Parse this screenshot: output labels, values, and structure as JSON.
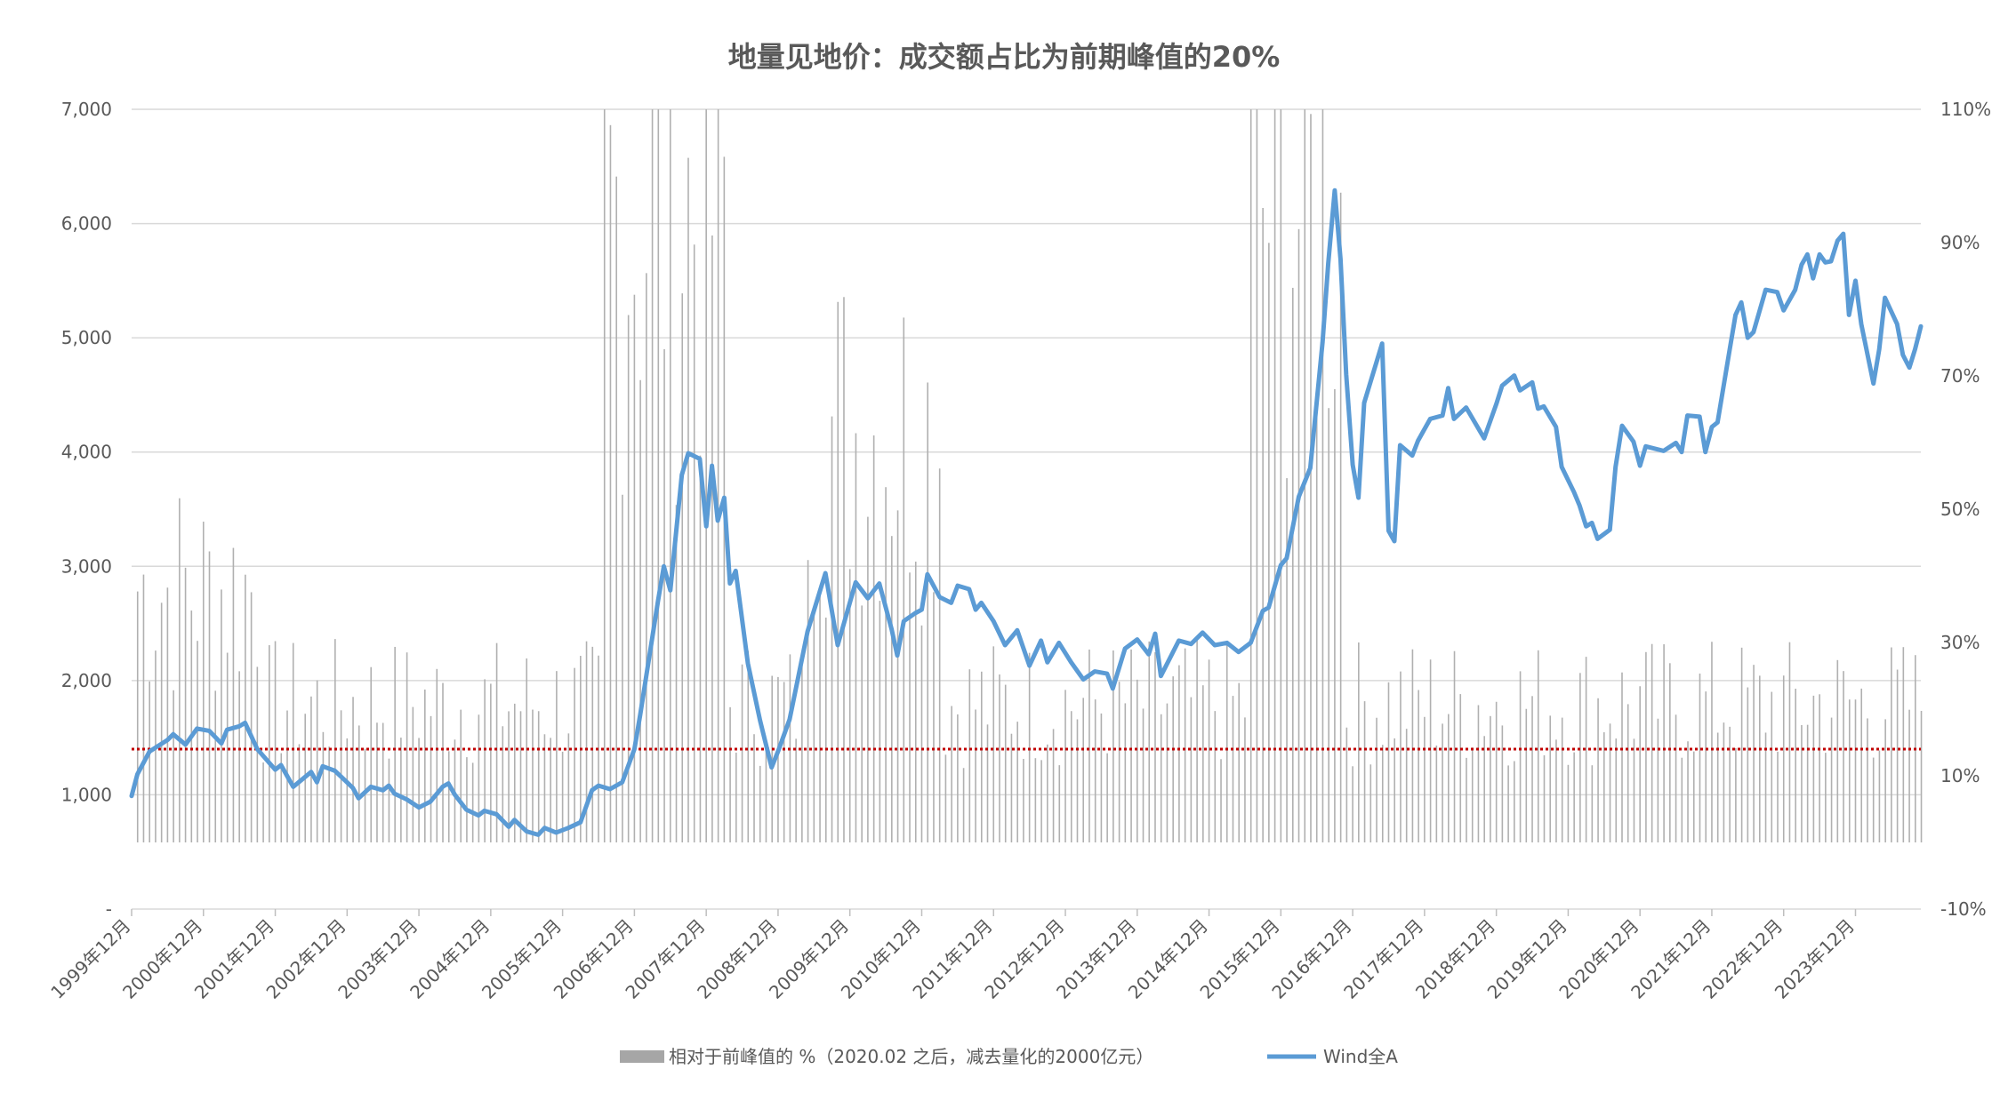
{
  "chart_data": {
    "type": "bar+line",
    "title": "地量见地价：成交额占比为前期峰值的20%",
    "left_axis": {
      "ticks": [
        "7,000",
        "6,000",
        "5,000",
        "4,000",
        "3,000",
        "2,000",
        "1,000",
        "-"
      ],
      "values": [
        7000,
        6000,
        5000,
        4000,
        3000,
        2000,
        1000,
        0
      ],
      "ylim": [
        0,
        7000
      ]
    },
    "right_axis": {
      "ticks": [
        "110%",
        "90%",
        "70%",
        "50%",
        "30%",
        "10%",
        "-10%"
      ],
      "values": [
        110,
        90,
        70,
        50,
        30,
        10,
        -10
      ],
      "ylim": [
        -10,
        110
      ]
    },
    "x_axis": {
      "categories": [
        "1999年12月",
        "2000年12月",
        "2001年12月",
        "2002年12月",
        "2003年12月",
        "2004年12月",
        "2005年12月",
        "2006年12月",
        "2007年12月",
        "2008年12月",
        "2009年12月",
        "2010年12月",
        "2011年12月",
        "2012年12月",
        "2013年12月",
        "2014年12月",
        "2015年12月",
        "2016年12月",
        "2017年12月",
        "2018年12月",
        "2019年12月",
        "2020年12月",
        "2021年12月",
        "2022年12月",
        "2023年12月"
      ],
      "x_range": [
        1999.92,
        2024.83
      ]
    },
    "reference_line": {
      "value": 14,
      "axis": "right",
      "color": "#c00000",
      "style": "dotted"
    },
    "series": [
      {
        "name": "相对于前峰值的 %（2020.02 之后，减去量化的2000亿元）",
        "type": "bar",
        "axis": "right",
        "color": "#a6a6a6",
        "note": "monthly bars, values in % (right axis), clipped at 110%"
      },
      {
        "name": "Wind全A",
        "type": "line",
        "axis": "left",
        "color": "#5b9bd5",
        "points": [
          [
            1999.92,
            990
          ],
          [
            2000.0,
            1180
          ],
          [
            2000.17,
            1380
          ],
          [
            2000.42,
            1480
          ],
          [
            2000.5,
            1530
          ],
          [
            2000.67,
            1440
          ],
          [
            2000.83,
            1580
          ],
          [
            2001.0,
            1560
          ],
          [
            2001.17,
            1450
          ],
          [
            2001.25,
            1570
          ],
          [
            2001.42,
            1600
          ],
          [
            2001.5,
            1630
          ],
          [
            2001.67,
            1400
          ],
          [
            2001.92,
            1220
          ],
          [
            2002.0,
            1260
          ],
          [
            2002.17,
            1070
          ],
          [
            2002.42,
            1200
          ],
          [
            2002.5,
            1110
          ],
          [
            2002.58,
            1250
          ],
          [
            2002.75,
            1210
          ],
          [
            2003.0,
            1060
          ],
          [
            2003.08,
            970
          ],
          [
            2003.25,
            1070
          ],
          [
            2003.42,
            1040
          ],
          [
            2003.5,
            1080
          ],
          [
            2003.58,
            1010
          ],
          [
            2003.75,
            960
          ],
          [
            2003.92,
            890
          ],
          [
            2004.08,
            940
          ],
          [
            2004.25,
            1070
          ],
          [
            2004.33,
            1100
          ],
          [
            2004.42,
            1000
          ],
          [
            2004.58,
            870
          ],
          [
            2004.75,
            820
          ],
          [
            2004.83,
            860
          ],
          [
            2005.0,
            830
          ],
          [
            2005.17,
            720
          ],
          [
            2005.25,
            780
          ],
          [
            2005.42,
            680
          ],
          [
            2005.58,
            650
          ],
          [
            2005.67,
            710
          ],
          [
            2005.83,
            670
          ],
          [
            2006.0,
            710
          ],
          [
            2006.17,
            760
          ],
          [
            2006.33,
            1040
          ],
          [
            2006.42,
            1080
          ],
          [
            2006.58,
            1050
          ],
          [
            2006.75,
            1110
          ],
          [
            2006.92,
            1400
          ],
          [
            2007.0,
            1700
          ],
          [
            2007.25,
            2700
          ],
          [
            2007.33,
            3000
          ],
          [
            2007.42,
            2790
          ],
          [
            2007.58,
            3800
          ],
          [
            2007.67,
            3990
          ],
          [
            2007.83,
            3940
          ],
          [
            2007.92,
            3350
          ],
          [
            2008.0,
            3880
          ],
          [
            2008.08,
            3400
          ],
          [
            2008.17,
            3600
          ],
          [
            2008.25,
            2850
          ],
          [
            2008.33,
            2960
          ],
          [
            2008.5,
            2150
          ],
          [
            2008.67,
            1650
          ],
          [
            2008.83,
            1240
          ],
          [
            2008.92,
            1380
          ],
          [
            2009.08,
            1660
          ],
          [
            2009.33,
            2430
          ],
          [
            2009.58,
            2940
          ],
          [
            2009.75,
            2310
          ],
          [
            2010.0,
            2860
          ],
          [
            2010.17,
            2720
          ],
          [
            2010.33,
            2850
          ],
          [
            2010.5,
            2450
          ],
          [
            2010.58,
            2220
          ],
          [
            2010.67,
            2520
          ],
          [
            2010.83,
            2590
          ],
          [
            2010.92,
            2620
          ],
          [
            2011.0,
            2930
          ],
          [
            2011.17,
            2730
          ],
          [
            2011.33,
            2680
          ],
          [
            2011.42,
            2830
          ],
          [
            2011.58,
            2800
          ],
          [
            2011.67,
            2620
          ],
          [
            2011.75,
            2680
          ],
          [
            2011.92,
            2520
          ],
          [
            2012.08,
            2310
          ],
          [
            2012.25,
            2440
          ],
          [
            2012.42,
            2130
          ],
          [
            2012.58,
            2350
          ],
          [
            2012.67,
            2160
          ],
          [
            2012.83,
            2330
          ],
          [
            2013.0,
            2160
          ],
          [
            2013.17,
            2010
          ],
          [
            2013.33,
            2080
          ],
          [
            2013.5,
            2060
          ],
          [
            2013.58,
            1930
          ],
          [
            2013.75,
            2280
          ],
          [
            2013.92,
            2360
          ],
          [
            2014.08,
            2230
          ],
          [
            2014.17,
            2410
          ],
          [
            2014.25,
            2040
          ],
          [
            2014.5,
            2350
          ],
          [
            2014.67,
            2320
          ],
          [
            2014.83,
            2420
          ],
          [
            2015.0,
            2310
          ],
          [
            2015.17,
            2330
          ],
          [
            2015.33,
            2250
          ],
          [
            2015.5,
            2330
          ],
          [
            2015.67,
            2610
          ],
          [
            2015.75,
            2640
          ],
          [
            2015.92,
            3010
          ],
          [
            2016.0,
            3070
          ],
          [
            2016.17,
            3610
          ],
          [
            2016.33,
            3860
          ],
          [
            2016.5,
            4960
          ],
          [
            2016.58,
            5650
          ],
          [
            2016.67,
            6290
          ],
          [
            2016.75,
            5690
          ],
          [
            2016.83,
            4680
          ],
          [
            2016.92,
            3890
          ],
          [
            2017.0,
            3600
          ],
          [
            2017.08,
            4430
          ],
          [
            2017.33,
            4950
          ],
          [
            2017.42,
            3310
          ],
          [
            2017.5,
            3220
          ],
          [
            2017.58,
            4060
          ],
          [
            2017.75,
            3970
          ],
          [
            2017.83,
            4100
          ],
          [
            2018.0,
            4290
          ],
          [
            2018.17,
            4320
          ],
          [
            2018.25,
            4560
          ],
          [
            2018.33,
            4290
          ],
          [
            2018.5,
            4390
          ],
          [
            2018.75,
            4120
          ],
          [
            2018.92,
            4420
          ],
          [
            2019.0,
            4580
          ],
          [
            2019.17,
            4670
          ],
          [
            2019.25,
            4540
          ],
          [
            2019.42,
            4610
          ],
          [
            2019.5,
            4380
          ],
          [
            2019.58,
            4400
          ],
          [
            2019.75,
            4220
          ],
          [
            2019.83,
            3870
          ],
          [
            2020.0,
            3650
          ],
          [
            2020.08,
            3530
          ],
          [
            2020.17,
            3350
          ],
          [
            2020.25,
            3380
          ],
          [
            2020.33,
            3240
          ],
          [
            2020.5,
            3320
          ],
          [
            2020.58,
            3870
          ],
          [
            2020.67,
            4230
          ],
          [
            2020.83,
            4090
          ],
          [
            2020.92,
            3880
          ],
          [
            2021.0,
            4050
          ],
          [
            2021.25,
            4010
          ],
          [
            2021.42,
            4080
          ],
          [
            2021.5,
            4000
          ],
          [
            2021.58,
            4320
          ],
          [
            2021.75,
            4310
          ],
          [
            2021.83,
            4000
          ],
          [
            2021.92,
            4220
          ],
          [
            2022.0,
            4260
          ],
          [
            2022.17,
            4900
          ],
          [
            2022.25,
            5200
          ],
          [
            2022.33,
            5310
          ],
          [
            2022.42,
            5000
          ],
          [
            2022.5,
            5050
          ],
          [
            2022.67,
            5420
          ],
          [
            2022.83,
            5400
          ],
          [
            2022.92,
            5240
          ],
          [
            2023.08,
            5420
          ],
          [
            2023.17,
            5640
          ],
          [
            2023.25,
            5730
          ],
          [
            2023.33,
            5520
          ],
          [
            2023.42,
            5730
          ],
          [
            2023.5,
            5660
          ],
          [
            2023.58,
            5670
          ],
          [
            2023.67,
            5850
          ],
          [
            2023.75,
            5910
          ],
          [
            2023.83,
            5200
          ],
          [
            2023.92,
            5500
          ],
          [
            2024.0,
            5120
          ],
          [
            2024.17,
            4600
          ],
          [
            2024.25,
            4900
          ],
          [
            2024.33,
            5350
          ],
          [
            2024.5,
            5120
          ],
          [
            2024.58,
            4850
          ],
          [
            2024.67,
            4740
          ],
          [
            2024.75,
            4900
          ],
          [
            2024.83,
            5100
          ]
        ]
      }
    ],
    "legend": {
      "position": "bottom",
      "items": [
        {
          "label": "相对于前峰值的 %（2020.02 之后，减去量化的2000亿元）",
          "color": "#a6a6a6",
          "kind": "bar"
        },
        {
          "label": "Wind全A",
          "color": "#5b9bd5",
          "kind": "line"
        }
      ]
    },
    "gridlines": true
  }
}
